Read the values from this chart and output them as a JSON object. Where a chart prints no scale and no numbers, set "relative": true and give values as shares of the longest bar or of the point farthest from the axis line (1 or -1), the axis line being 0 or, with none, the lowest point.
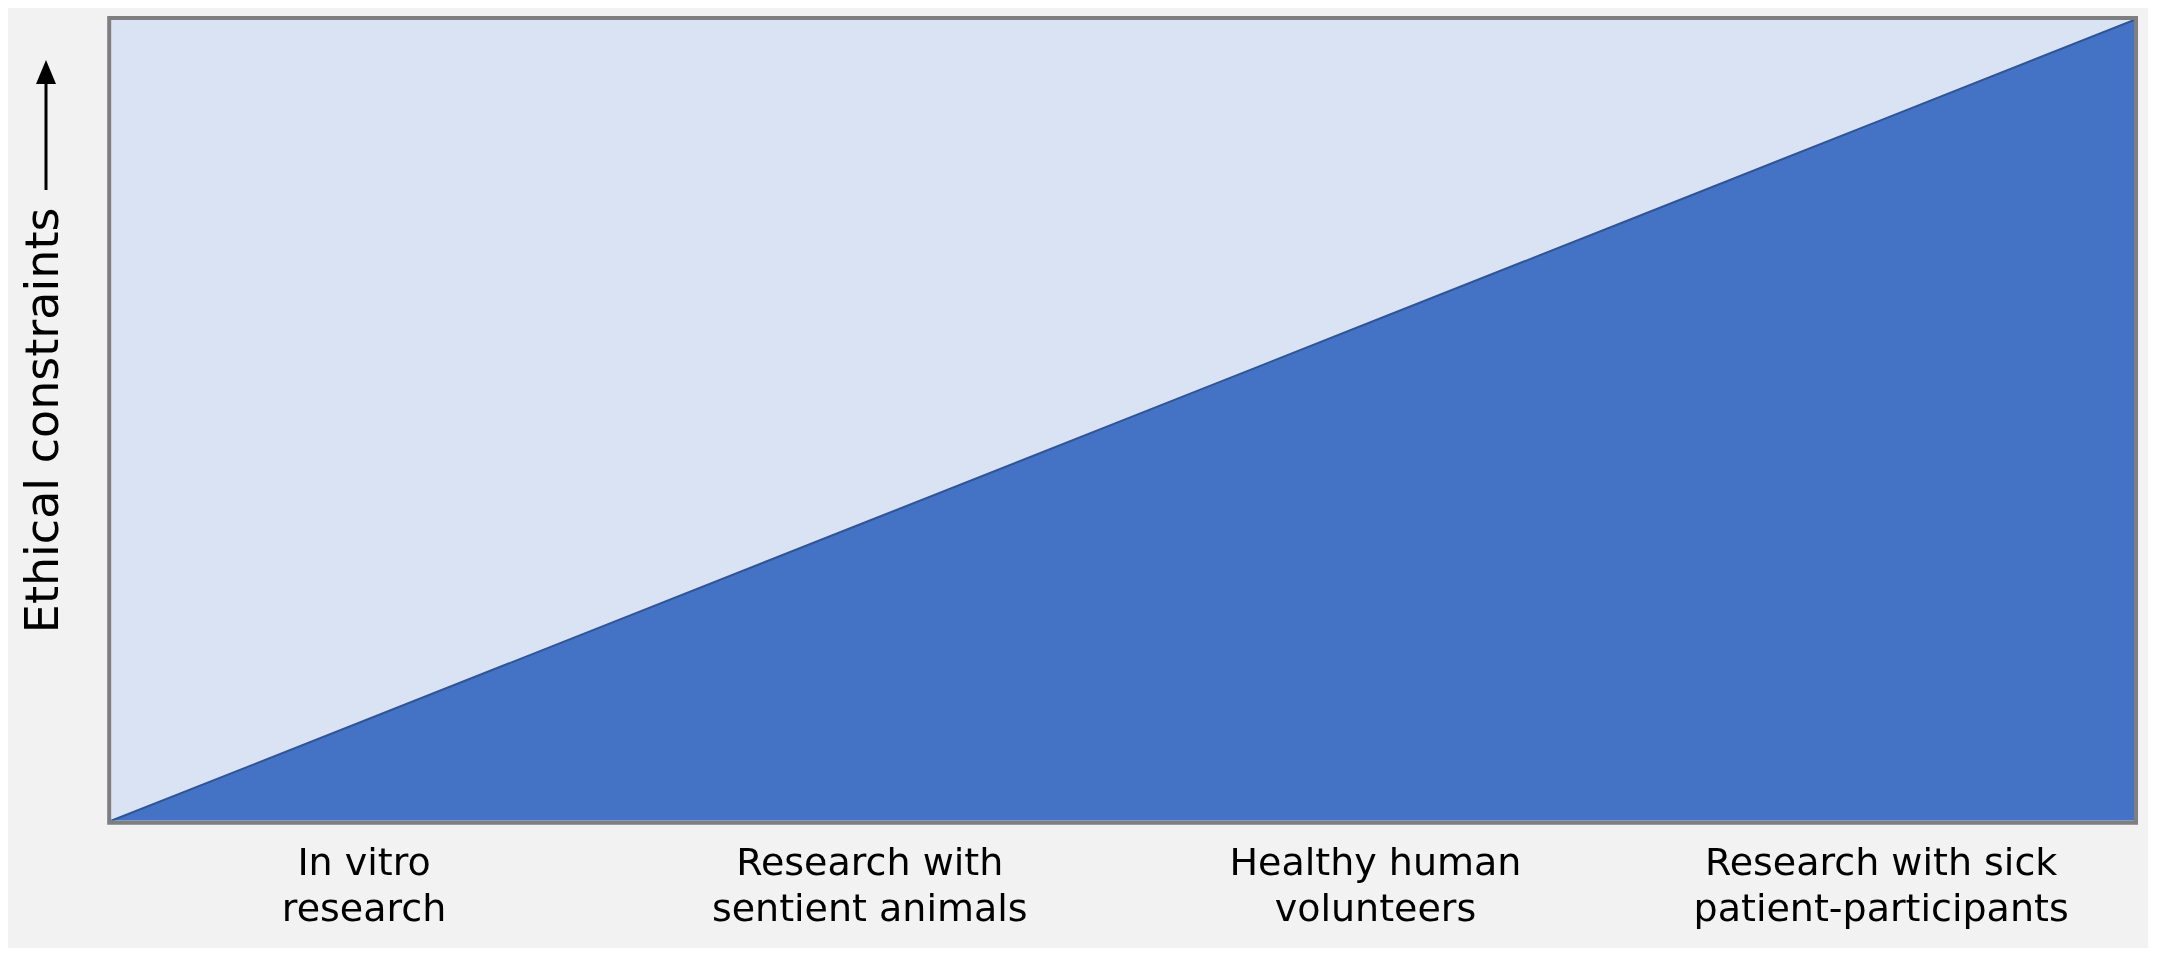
{
  "chart_data": {
    "type": "area",
    "relative": true,
    "ylabel": "Ethical constraints",
    "categories": [
      null,
      "In vitro research",
      null,
      "Research with sentient animals",
      null,
      "Healthy human volunteers",
      null,
      "Research with sick patient-participants",
      null
    ],
    "series": [
      {
        "color": "#4472c4",
        "values": [
          0,
          0.125,
          0.25,
          0.375,
          0.5,
          0.625,
          0.75,
          0.875,
          1
        ]
      }
    ]
  }
}
